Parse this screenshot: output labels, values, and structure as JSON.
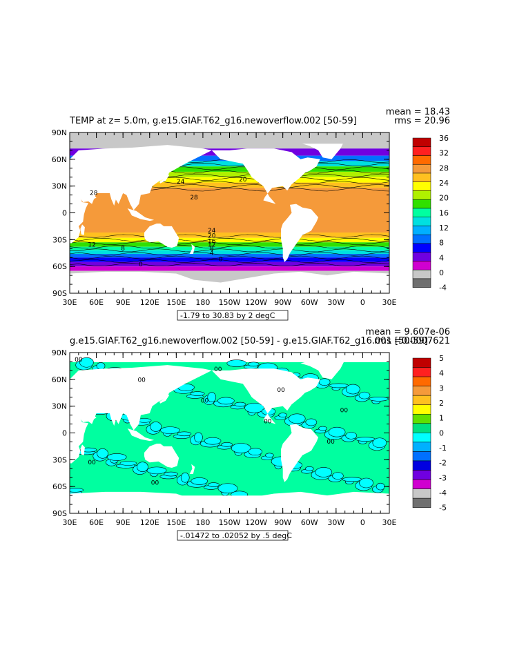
{
  "panels": [
    {
      "title": "TEMP at z=    5.0m, g.e15.GIAF.T62_g16.newoverflow.002 [50-59]",
      "mean_text": "mean = 18.43",
      "rms_text": "rms = 20.96",
      "lat_labels": [
        "90N",
        "60N",
        "30N",
        "0",
        "30S",
        "60S",
        "90S"
      ],
      "lon_labels": [
        "30E",
        "60E",
        "90E",
        "120E",
        "150E",
        "180",
        "150W",
        "120W",
        "90W",
        "60W",
        "30W",
        "0",
        "30E"
      ],
      "range_text": "-1.79 to 30.83 by 2 degC",
      "colorbar_labels": [
        "36",
        "32",
        "28",
        "24",
        "20",
        "16",
        "12",
        "8",
        "4",
        "0",
        "-4"
      ],
      "colorbar_colors": [
        "#c00000",
        "#ff2020",
        "#ff6a00",
        "#f59a3a",
        "#ffc020",
        "#ffff00",
        "#b0f000",
        "#30e000",
        "#00ffa0",
        "#00e0e0",
        "#00b0ff",
        "#0070ff",
        "#0000ff",
        "#7000e0",
        "#d000d0",
        "#c8c8c8",
        "#707070"
      ],
      "contour_labels": [
        "28",
        "28",
        "24",
        "20",
        "24",
        "20",
        "16",
        "12",
        "8",
        "4",
        "0",
        "0",
        "16",
        "12",
        "8"
      ]
    },
    {
      "title": "g.e15.GIAF.T62_g16.newoverflow.002 [50-59] - g.e15.GIAF.T62_g16.001 [50-59]",
      "mean_text": "mean = 9.607e-06",
      "rms_text": "rms =0.0007621",
      "lat_labels": [
        "90N",
        "60N",
        "30N",
        "0",
        "30S",
        "60S",
        "90S"
      ],
      "lon_labels": [
        "30E",
        "60E",
        "90E",
        "120E",
        "150E",
        "180",
        "150W",
        "120W",
        "90W",
        "60W",
        "30W",
        "0",
        "30E"
      ],
      "range_text": "-.01472 to .02052 by .5 degC",
      "colorbar_labels": [
        "5",
        "4",
        "3",
        "2",
        "1",
        "0",
        "-1",
        "-2",
        "-3",
        "-4",
        "-5"
      ],
      "colorbar_colors": [
        "#c00000",
        "#ff2020",
        "#ff6a00",
        "#f59a3a",
        "#ffc020",
        "#ffff00",
        "#60e000",
        "#00e080",
        "#00ffff",
        "#00b0ff",
        "#0070ff",
        "#0000e0",
        "#7000e0",
        "#d000d0",
        "#c8c8c8",
        "#707070"
      ],
      "contour_labels": [
        "00",
        "00",
        "00",
        "00",
        "00",
        "00",
        "00",
        "00",
        "00",
        "00"
      ]
    }
  ]
}
